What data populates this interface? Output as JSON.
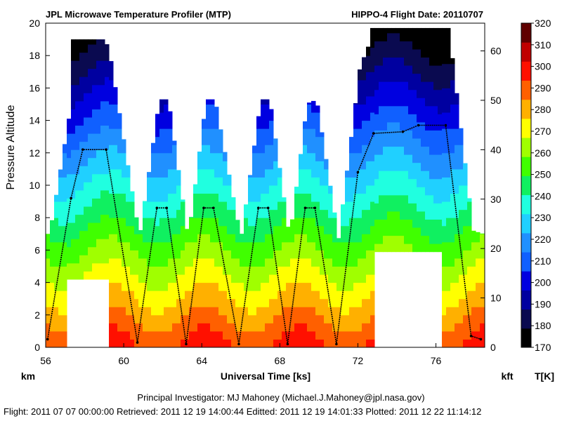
{
  "chart_data": {
    "type": "heatmap",
    "title_left": "JPL Microwave Temperature Profiler (MTP)",
    "title_right": "HIPPO-4  Flight Date: 20110707",
    "xlabel": "Universal Time [ks]",
    "ylabel": "Pressure Altitude",
    "left_unit": "km",
    "right_unit": "kft",
    "colorbar_unit": "T[K]",
    "xlim": [
      56,
      78.5
    ],
    "x_ticks": [
      "56",
      "60",
      "64",
      "68",
      "72",
      "76"
    ],
    "ylim_km": [
      0,
      20
    ],
    "y_ticks_km": [
      "0",
      "2",
      "4",
      "6",
      "8",
      "10",
      "12",
      "14",
      "16",
      "18",
      "20"
    ],
    "y_ticks_kft": [
      "0",
      "10",
      "20",
      "30",
      "40",
      "50",
      "60"
    ],
    "colorbar": {
      "range": [
        170,
        320
      ],
      "ticks": [
        "170",
        "180",
        "190",
        "200",
        "210",
        "220",
        "230",
        "240",
        "250",
        "260",
        "270",
        "280",
        "290",
        "300",
        "310",
        "320"
      ],
      "colors": [
        "#000000",
        "#0a0a50",
        "#0000a0",
        "#0000e0",
        "#1060ff",
        "#2090ff",
        "#20d0ff",
        "#20ffe0",
        "#10f060",
        "#40ff00",
        "#a0ff00",
        "#ffff00",
        "#ffb000",
        "#ff6000",
        "#ff1000",
        "#c00000",
        "#600000"
      ]
    },
    "flight_track_km": [
      {
        "x": 56.1,
        "y": 0.5
      },
      {
        "x": 57.3,
        "y": 9.2
      },
      {
        "x": 57.9,
        "y": 12.2
      },
      {
        "x": 59.1,
        "y": 12.2
      },
      {
        "x": 60.7,
        "y": 0.3
      },
      {
        "x": 61.7,
        "y": 8.6
      },
      {
        "x": 62.2,
        "y": 8.6
      },
      {
        "x": 63.2,
        "y": 0.2
      },
      {
        "x": 64.1,
        "y": 8.6
      },
      {
        "x": 64.6,
        "y": 8.6
      },
      {
        "x": 65.9,
        "y": 0.2
      },
      {
        "x": 66.9,
        "y": 8.6
      },
      {
        "x": 67.4,
        "y": 8.6
      },
      {
        "x": 68.4,
        "y": 0.2
      },
      {
        "x": 69.3,
        "y": 8.6
      },
      {
        "x": 69.8,
        "y": 8.6
      },
      {
        "x": 70.9,
        "y": 0.2
      },
      {
        "x": 72.0,
        "y": 10.8
      },
      {
        "x": 72.8,
        "y": 13.2
      },
      {
        "x": 74.3,
        "y": 13.3
      },
      {
        "x": 75.1,
        "y": 13.7
      },
      {
        "x": 76.5,
        "y": 13.7
      },
      {
        "x": 77.8,
        "y": 0.7
      },
      {
        "x": 78.3,
        "y": 0.5
      }
    ],
    "profile_tops_km": [
      {
        "x_start": 57.2,
        "x_end": 59.0,
        "top": 19.0
      },
      {
        "x_start": 61.8,
        "x_end": 62.1,
        "top": 15.3
      },
      {
        "x_start": 64.2,
        "x_end": 64.5,
        "top": 15.3
      },
      {
        "x_start": 66.9,
        "x_end": 67.3,
        "top": 15.3
      },
      {
        "x_start": 69.4,
        "x_end": 69.7,
        "top": 15.2
      },
      {
        "x_start": 72.6,
        "x_end": 76.6,
        "top": 19.7
      }
    ],
    "profile_bottoms_km": [
      {
        "x_start": 57.0,
        "x_end": 59.2,
        "bottom": 4.2
      },
      {
        "x_start": 72.8,
        "x_end": 76.2,
        "bottom": 5.9
      }
    ]
  },
  "footer": {
    "pi": "Principal Investigator: MJ Mahoney (Michael.J.Mahoney@jpl.nasa.gov)",
    "dates": "Flight: 2011 07 07 00:00:00   Retrieved: 2011 12 19 14:00:44   Editted: 2011 12 19 14:01:33   Plotted: 2011 12 22 11:14:12"
  }
}
